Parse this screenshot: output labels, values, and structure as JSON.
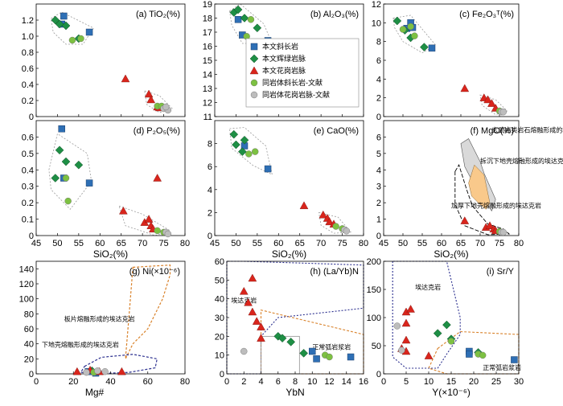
{
  "colors": {
    "basalt": "#2e6fb5",
    "gabbro": "#1e8f45",
    "granite": "#d9251c",
    "gneiss_lit": "#7dc142",
    "gray": "#bdbdbd",
    "orange": "#d9822b",
    "navy": "#2b2f8f"
  },
  "legend": {
    "items": [
      {
        "label": "本文斜长岩",
        "marker": "square",
        "color": "#2e6fb5"
      },
      {
        "label": "本文辉绿岩脉",
        "marker": "diamond",
        "color": "#1e8f45"
      },
      {
        "label": "本文花岗岩脉",
        "marker": "triangle",
        "color": "#d9251c"
      },
      {
        "label": "同岩体斜长岩-文献",
        "marker": "circle",
        "color": "#7dc142"
      },
      {
        "label": "同岩体花岗岩脉-文献",
        "marker": "circle",
        "color": "#bdbdbd"
      }
    ]
  },
  "chart_data": [
    {
      "id": "a",
      "type": "scatter",
      "title": "(a) TiO₂(%)",
      "xlim": [
        45,
        80
      ],
      "ylim": [
        0,
        1.4
      ],
      "yticks": [
        0,
        0.2,
        0.4,
        0.6,
        0.8,
        1.0,
        1.2
      ],
      "yticklabels": [
        "0",
        "0.2",
        "0.4",
        "0.6",
        "0.8",
        "1.0",
        "1.2"
      ],
      "series": {
        "basalt": [
          [
            51.5,
            1.25
          ],
          [
            51,
            1.15
          ],
          [
            57.5,
            1.05
          ]
        ],
        "gabbro": [
          [
            49.5,
            1.2
          ],
          [
            50.5,
            1.15
          ],
          [
            52,
            1.13
          ],
          [
            55,
            0.97
          ]
        ],
        "granite": [
          [
            66,
            0.47
          ],
          [
            71.5,
            0.28
          ],
          [
            72,
            0.21
          ],
          [
            73.5,
            0.12
          ],
          [
            74,
            0.11
          ]
        ],
        "gneiss": [
          [
            53.5,
            0.95
          ],
          [
            55.5,
            0.97
          ],
          [
            73.5,
            0.13
          ],
          [
            74.5,
            0.13
          ]
        ],
        "gray": [
          [
            75,
            0.1
          ],
          [
            76,
            0.08
          ],
          [
            75.5,
            0.12
          ]
        ]
      }
    },
    {
      "id": "b",
      "type": "scatter",
      "title": "(b) Al₂O₃(%)",
      "xlim": [
        45,
        80
      ],
      "ylim": [
        11,
        19
      ],
      "yticks": [
        11,
        12,
        13,
        14,
        15,
        16,
        17,
        18,
        19
      ],
      "yticklabels": [
        "11",
        "12",
        "13",
        "14",
        "15",
        "16",
        "17",
        "18",
        "19"
      ],
      "series": {
        "basalt": [
          [
            50.5,
            17.9
          ],
          [
            51.5,
            16.8
          ],
          [
            57.5,
            16.4
          ]
        ],
        "gabbro": [
          [
            49.5,
            18.4
          ],
          [
            50.5,
            18.6
          ],
          [
            52,
            18.0
          ],
          [
            55,
            17.3
          ]
        ],
        "granite": [
          [
            66,
            16.2
          ],
          [
            71,
            14.7
          ],
          [
            72,
            13.9
          ],
          [
            72.5,
            13.4
          ],
          [
            73.5,
            13.0
          ],
          [
            74,
            13.5
          ]
        ],
        "gneiss": [
          [
            52.5,
            16.7
          ],
          [
            53.5,
            17.9
          ],
          [
            74,
            12.9
          ],
          [
            75,
            12.6
          ]
        ],
        "gray": [
          [
            75.5,
            12.8
          ],
          [
            76,
            12.6
          ]
        ]
      }
    },
    {
      "id": "c",
      "type": "scatter",
      "title": "(c) Fe₂O₃ᵀ(%)",
      "xlim": [
        45,
        80
      ],
      "ylim": [
        0,
        12
      ],
      "yticks": [
        0,
        2,
        4,
        6,
        8,
        10,
        12
      ],
      "yticklabels": [
        "0",
        "2",
        "4",
        "6",
        "8",
        "10",
        "12"
      ],
      "series": {
        "basalt": [
          [
            51,
            9.4
          ],
          [
            52,
            10.0
          ],
          [
            52.5,
            9.5
          ],
          [
            57.5,
            7.3
          ]
        ],
        "gabbro": [
          [
            48.5,
            10.2
          ],
          [
            50.5,
            9.2
          ],
          [
            52,
            8.4
          ],
          [
            55.5,
            7.4
          ]
        ],
        "granite": [
          [
            66,
            3.0
          ],
          [
            71,
            2.0
          ],
          [
            72,
            1.8
          ],
          [
            73,
            1.4
          ],
          [
            74,
            0.9
          ]
        ],
        "gneiss": [
          [
            50,
            9.3
          ],
          [
            52,
            9.6
          ],
          [
            53,
            8.6
          ],
          [
            75,
            0.6
          ]
        ],
        "gray": [
          [
            75.5,
            0.5
          ],
          [
            76,
            0.5
          ]
        ]
      }
    },
    {
      "id": "d",
      "type": "scatter",
      "title": "(d) P₂O₅(%)",
      "xlim": [
        45,
        80
      ],
      "ylim": [
        0,
        0.7
      ],
      "yticks": [
        0,
        0.1,
        0.2,
        0.3,
        0.4,
        0.5,
        0.6
      ],
      "yticklabels": [
        "0",
        "0.1",
        "0.2",
        "0.3",
        "0.4",
        "0.5",
        "0.6"
      ],
      "series": {
        "basalt": [
          [
            51,
            0.65
          ],
          [
            51.5,
            0.35
          ],
          [
            57.5,
            0.32
          ]
        ],
        "gabbro": [
          [
            49.5,
            0.35
          ],
          [
            50.5,
            0.52
          ],
          [
            52,
            0.45
          ],
          [
            55,
            0.43
          ]
        ],
        "granite": [
          [
            65.5,
            0.15
          ],
          [
            70.5,
            0.08
          ],
          [
            71.5,
            0.1
          ],
          [
            72,
            0.06
          ],
          [
            73.5,
            0.35
          ],
          [
            72.5,
            0.04
          ]
        ],
        "gneiss": [
          [
            52,
            0.35
          ],
          [
            52.5,
            0.21
          ],
          [
            73.5,
            0.03
          ],
          [
            75,
            0.02
          ]
        ],
        "gray": [
          [
            75.5,
            0.02
          ],
          [
            76,
            0.01
          ]
        ]
      }
    },
    {
      "id": "e",
      "type": "scatter",
      "title": "(e) CaO(%)",
      "xlim": [
        45,
        80
      ],
      "ylim": [
        0,
        10
      ],
      "yticks": [
        0,
        2,
        4,
        6,
        8
      ],
      "yticklabels": [
        "0",
        "2",
        "4",
        "6",
        "8"
      ],
      "series": {
        "basalt": [
          [
            52,
            7.8
          ],
          [
            57.5,
            5.8
          ]
        ],
        "gabbro": [
          [
            49.5,
            8.8
          ],
          [
            50,
            7.9
          ],
          [
            52,
            8.3
          ],
          [
            51.5,
            7.3
          ]
        ],
        "granite": [
          [
            66,
            2.6
          ],
          [
            70.5,
            1.8
          ],
          [
            71.5,
            1.5
          ],
          [
            72,
            1.2
          ],
          [
            73,
            1.0
          ]
        ],
        "gneiss": [
          [
            53,
            7.1
          ],
          [
            54.5,
            7.3
          ],
          [
            73.5,
            0.8
          ],
          [
            75,
            0.6
          ]
        ],
        "gray": [
          [
            75.5,
            0.5
          ],
          [
            76,
            0.4
          ]
        ]
      }
    },
    {
      "id": "f",
      "type": "scatter",
      "title": "(f) MgO(%)",
      "xlim": [
        45,
        80
      ],
      "ylim": [
        0,
        7
      ],
      "yticks": [
        0,
        1,
        2,
        3,
        4,
        5,
        6
      ],
      "yticklabels": [
        "0",
        "1",
        "2",
        "3",
        "4",
        "5",
        "6"
      ],
      "annotations": [
        "玄武岩类岩石熔融形成的埃达克岩",
        "拆沉下地壳熔融形成的埃达克岩",
        "加厚下地壳熔融形成的埃达克岩"
      ],
      "series": {
        "basalt": [],
        "gabbro": [],
        "granite": [
          [
            66,
            0.9
          ],
          [
            71.5,
            0.5
          ],
          [
            72.5,
            0.6
          ],
          [
            73.5,
            0.4
          ],
          [
            74,
            0.3
          ]
        ],
        "gneiss": [
          [
            75,
            0.25
          ]
        ],
        "gray": [
          [
            75.5,
            0.2
          ],
          [
            76,
            0.2
          ]
        ]
      }
    },
    {
      "id": "g",
      "type": "scatter",
      "title": "(g) Ni(×10⁻⁶)",
      "xlabel": "Mg#",
      "xlim": [
        0,
        80
      ],
      "ylim": [
        0,
        150
      ],
      "xticks": [
        0,
        20,
        40,
        60,
        80
      ],
      "yticks": [
        0,
        20,
        40,
        60,
        80,
        100,
        120,
        140
      ],
      "yticklabels": [
        "0",
        "20",
        "40",
        "60",
        "80",
        "100",
        "120",
        "140"
      ],
      "annotations": [
        "板片熔融形成的埃达克岩",
        "下地壳熔融形成的埃达克岩"
      ],
      "series": {
        "basalt": [
          [
            28,
            3
          ],
          [
            32,
            1
          ]
        ],
        "gabbro": [
          [
            30,
            4
          ]
        ],
        "granite": [
          [
            22,
            3
          ],
          [
            29,
            5
          ],
          [
            34,
            3
          ],
          [
            46,
            3
          ]
        ],
        "gneiss": [
          [
            31,
            2
          ]
        ],
        "gray": [
          [
            27,
            2
          ],
          [
            33,
            4
          ],
          [
            37,
            3
          ]
        ]
      }
    },
    {
      "id": "h",
      "type": "scatter",
      "title": "(h) (La/Yb)N",
      "xlabel": "YbN",
      "xlim": [
        0,
        16
      ],
      "ylim": [
        0,
        60
      ],
      "xticks": [
        0,
        2,
        4,
        6,
        8,
        10,
        12,
        14,
        16
      ],
      "yticks": [
        0,
        10,
        20,
        30,
        40,
        50,
        60
      ],
      "yticklabels": [
        "0",
        "10",
        "20",
        "30",
        "40",
        "50",
        "60"
      ],
      "annotations": [
        "埃达克岩",
        "正常弧岩浆岩"
      ],
      "series": {
        "basalt": [
          [
            10,
            12
          ],
          [
            10.5,
            8
          ],
          [
            14.5,
            9
          ]
        ],
        "gabbro": [
          [
            6,
            20
          ],
          [
            6.5,
            19
          ],
          [
            7.5,
            17
          ],
          [
            9,
            11
          ]
        ],
        "granite": [
          [
            2,
            44
          ],
          [
            2.5,
            38
          ],
          [
            3,
            51
          ],
          [
            3.5,
            28
          ],
          [
            4,
            25
          ],
          [
            4,
            19
          ],
          [
            3,
            33
          ]
        ],
        "gneiss": [
          [
            11.5,
            10
          ],
          [
            12,
            9
          ]
        ],
        "gray": [
          [
            2,
            12
          ]
        ]
      }
    },
    {
      "id": "i",
      "type": "scatter",
      "title": "(i) Sr/Y",
      "xlabel": "Y(×10⁻⁶)",
      "xlim": [
        0,
        30
      ],
      "ylim": [
        0,
        200
      ],
      "xticks": [
        0,
        5,
        10,
        15,
        20,
        25,
        30
      ],
      "yticks": [
        0,
        50,
        100,
        150,
        200
      ],
      "yticklabels": [
        "0",
        "50",
        "100",
        "150",
        "200"
      ],
      "annotations": [
        "埃达克岩",
        "正常弧岩浆岩"
      ],
      "series": {
        "basalt": [
          [
            19,
            40
          ],
          [
            19,
            35
          ],
          [
            29,
            25
          ]
        ],
        "gabbro": [
          [
            12,
            72
          ],
          [
            14,
            87
          ],
          [
            15,
            62
          ],
          [
            21,
            38
          ]
        ],
        "granite": [
          [
            5,
            110
          ],
          [
            6,
            115
          ],
          [
            5,
            90
          ],
          [
            4,
            45
          ],
          [
            5,
            40
          ],
          [
            5,
            60
          ],
          [
            10,
            32
          ]
        ],
        "gneiss": [
          [
            15,
            58
          ],
          [
            21,
            35
          ],
          [
            22,
            33
          ]
        ],
        "gray": [
          [
            3,
            85
          ],
          [
            4,
            42
          ]
        ]
      }
    }
  ],
  "xaxis_label_sio2": "SiO₂(%)"
}
